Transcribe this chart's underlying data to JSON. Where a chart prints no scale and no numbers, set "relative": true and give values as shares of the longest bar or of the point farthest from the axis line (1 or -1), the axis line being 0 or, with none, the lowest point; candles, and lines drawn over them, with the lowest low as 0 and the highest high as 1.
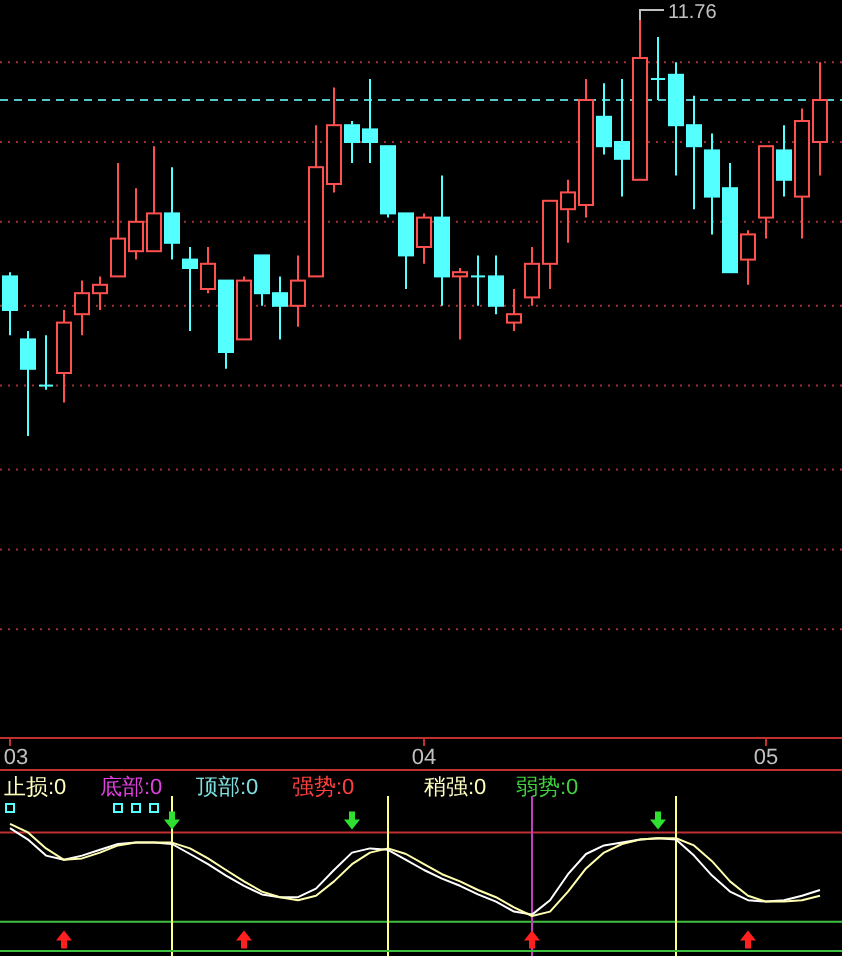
{
  "chart_data": [
    {
      "type": "candlestick",
      "relative": true,
      "categories": [
        "03",
        null,
        null,
        null,
        null,
        null,
        null,
        null,
        null,
        null,
        null,
        null,
        null,
        null,
        null,
        null,
        null,
        null,
        null,
        null,
        null,
        null,
        null,
        "04",
        null,
        null,
        null,
        null,
        null,
        null,
        null,
        null,
        null,
        null,
        null,
        null,
        null,
        null,
        null,
        null,
        null,
        null,
        "05",
        null,
        null,
        null
      ],
      "ohlc": [
        [
          0.38,
          0.39,
          0.24,
          0.3
        ],
        [
          0.23,
          0.25,
          0,
          0.16
        ],
        [
          0.12,
          0.24,
          0.11,
          0.12
        ],
        [
          0.15,
          0.3,
          0.08,
          0.27
        ],
        [
          0.29,
          0.37,
          0.24,
          0.34
        ],
        [
          0.34,
          0.38,
          0.3,
          0.36
        ],
        [
          0.38,
          0.65,
          0.38,
          0.47
        ],
        [
          0.44,
          0.59,
          0.42,
          0.51
        ],
        [
          0.44,
          0.69,
          0.44,
          0.53
        ],
        [
          0.53,
          0.64,
          0.42,
          0.46
        ],
        [
          0.42,
          0.45,
          0.25,
          0.4
        ],
        [
          0.35,
          0.45,
          0.34,
          0.41
        ],
        [
          0.37,
          0.37,
          0.16,
          0.2
        ],
        [
          0.23,
          0.38,
          0.23,
          0.37
        ],
        [
          0.43,
          0.43,
          0.31,
          0.34
        ],
        [
          0.34,
          0.38,
          0.23,
          0.31
        ],
        [
          0.31,
          0.43,
          0.26,
          0.37
        ],
        [
          0.38,
          0.74,
          0.38,
          0.64
        ],
        [
          0.6,
          0.83,
          0.58,
          0.74
        ],
        [
          0.74,
          0.75,
          0.65,
          0.7
        ],
        [
          0.73,
          0.85,
          0.65,
          0.7
        ],
        [
          0.69,
          0.69,
          0.52,
          0.53
        ],
        [
          0.53,
          0.53,
          0.35,
          0.43
        ],
        [
          0.45,
          0.53,
          0.41,
          0.52
        ],
        [
          0.52,
          0.62,
          0.31,
          0.38
        ],
        [
          0.38,
          0.4,
          0.23,
          0.39
        ],
        [
          0.38,
          0.43,
          0.31,
          0.38
        ],
        [
          0.38,
          0.43,
          0.29,
          0.31
        ],
        [
          0.27,
          0.35,
          0.25,
          0.29
        ],
        [
          0.33,
          0.45,
          0.31,
          0.41
        ],
        [
          0.41,
          0.56,
          0.35,
          0.56
        ],
        [
          0.54,
          0.61,
          0.46,
          0.58
        ],
        [
          0.55,
          0.85,
          0.52,
          0.8
        ],
        [
          0.76,
          0.84,
          0.67,
          0.69
        ],
        [
          0.7,
          0.85,
          0.57,
          0.66
        ],
        [
          0.61,
          1.0,
          0.61,
          0.9
        ],
        [
          0.85,
          0.95,
          0.8,
          0.85
        ],
        [
          0.86,
          0.89,
          0.62,
          0.74
        ],
        [
          0.74,
          0.81,
          0.54,
          0.69
        ],
        [
          0.68,
          0.72,
          0.48,
          0.57
        ],
        [
          0.59,
          0.65,
          0.39,
          0.39
        ],
        [
          0.42,
          0.49,
          0.36,
          0.48
        ],
        [
          0.52,
          0.69,
          0.47,
          0.69
        ],
        [
          0.68,
          0.74,
          0.57,
          0.61
        ],
        [
          0.57,
          0.78,
          0.47,
          0.75
        ],
        [
          0.7,
          0.89,
          0.62,
          0.8
        ]
      ],
      "colors": [
        "#54ffff",
        "#54ffff",
        "#54ffff",
        "#ff5050",
        "#ff5050",
        "#ff5050",
        "#ff5050",
        "#ff5050",
        "#ff5050",
        "#54ffff",
        "#54ffff",
        "#ff5050",
        "#54ffff",
        "#ff5050",
        "#54ffff",
        "#54ffff",
        "#ff5050",
        "#ff5050",
        "#ff5050",
        "#54ffff",
        "#54ffff",
        "#54ffff",
        "#54ffff",
        "#ff5050",
        "#54ffff",
        "#ff5050",
        "#54ffff",
        "#54ffff",
        "#ff5050",
        "#ff5050",
        "#ff5050",
        "#ff5050",
        "#ff5050",
        "#54ffff",
        "#54ffff",
        "#ff5050",
        "#54ffff",
        "#54ffff",
        "#54ffff",
        "#54ffff",
        "#54ffff",
        "#ff5050",
        "#ff5050",
        "#54ffff",
        "#ff5050",
        "#ff5050"
      ],
      "ref_lines": [
        {
          "axis": "y",
          "value": 0.89,
          "color": "#a03030",
          "line_style": "dotted"
        },
        {
          "axis": "y",
          "value": 0.8,
          "color": "#54c8c8",
          "line_style": "dashed"
        },
        {
          "axis": "y",
          "value": 0.7,
          "color": "#a03030",
          "line_style": "dotted"
        },
        {
          "axis": "y",
          "value": 0.51,
          "color": "#a03030",
          "line_style": "dotted"
        },
        {
          "axis": "y",
          "value": 0.31,
          "color": "#a03030",
          "line_style": "dotted"
        },
        {
          "axis": "y",
          "value": 0.12,
          "color": "#a03030",
          "line_style": "dotted"
        },
        {
          "axis": "y",
          "value": -0.08,
          "color": "#a03030",
          "line_style": "dotted"
        },
        {
          "axis": "y",
          "value": -0.27,
          "color": "#a03030",
          "line_style": "dotted"
        },
        {
          "axis": "y",
          "value": -0.46,
          "color": "#a03030",
          "line_style": "dotted"
        }
      ],
      "annotations": [
        "11.76"
      ]
    },
    {
      "type": "line",
      "relative": true,
      "grid": true,
      "categories": [
        null,
        null,
        null,
        null,
        null,
        null,
        null,
        null,
        null,
        null,
        null,
        null,
        null,
        null,
        null,
        null,
        null,
        null,
        null,
        null,
        null,
        null,
        null,
        null,
        null,
        null,
        null,
        null,
        null,
        null,
        null,
        null,
        null,
        null,
        null,
        null,
        null,
        null,
        null,
        null,
        null,
        null,
        null,
        null,
        null,
        null
      ],
      "series": [
        {
          "color": "#ffffff",
          "values": [
            0.86,
            0.78,
            0.67,
            0.64,
            0.67,
            0.71,
            0.75,
            0.76,
            0.76,
            0.75,
            0.68,
            0.61,
            0.53,
            0.46,
            0.4,
            0.38,
            0.38,
            0.44,
            0.57,
            0.69,
            0.72,
            0.71,
            0.64,
            0.57,
            0.51,
            0.46,
            0.4,
            0.35,
            0.28,
            0.26,
            0.36,
            0.54,
            0.68,
            0.74,
            0.76,
            0.78,
            0.79,
            0.78,
            0.67,
            0.53,
            0.42,
            0.36,
            0.35,
            0.36,
            0.39,
            0.43
          ]
        },
        {
          "color": "#ffffb0",
          "values": [
            0.89,
            0.83,
            0.72,
            0.64,
            0.65,
            0.69,
            0.74,
            0.76,
            0.76,
            0.76,
            0.72,
            0.65,
            0.57,
            0.49,
            0.42,
            0.38,
            0.36,
            0.39,
            0.49,
            0.61,
            0.69,
            0.72,
            0.68,
            0.61,
            0.54,
            0.49,
            0.43,
            0.38,
            0.31,
            0.25,
            0.28,
            0.42,
            0.58,
            0.69,
            0.75,
            0.78,
            0.79,
            0.79,
            0.74,
            0.63,
            0.49,
            0.39,
            0.35,
            0.35,
            0.36,
            0.39
          ]
        },
        {
          "type": "scatter",
          "marker": "triangle",
          "color": "#30e030",
          "values": [
            null,
            null,
            null,
            null,
            null,
            null,
            null,
            null,
            null,
            0.92,
            null,
            null,
            null,
            null,
            null,
            null,
            null,
            null,
            null,
            0.92,
            null,
            null,
            null,
            null,
            null,
            null,
            null,
            null,
            null,
            null,
            null,
            null,
            null,
            null,
            null,
            null,
            0.92,
            null,
            null,
            null,
            null,
            null,
            null,
            null,
            null,
            null
          ]
        },
        {
          "type": "scatter",
          "marker": "triangle",
          "color": "#ff2020",
          "values": [
            null,
            null,
            null,
            0.08,
            null,
            null,
            null,
            null,
            null,
            null,
            null,
            null,
            null,
            0.08,
            null,
            null,
            null,
            null,
            null,
            null,
            null,
            null,
            null,
            null,
            null,
            null,
            null,
            null,
            null,
            0.08,
            null,
            null,
            null,
            null,
            null,
            null,
            null,
            null,
            null,
            null,
            null,
            0.08,
            null,
            null,
            null,
            null
          ]
        },
        {
          "type": "scatter",
          "marker": "square",
          "color": "#54ffff",
          "values": [
            1.0,
            null,
            null,
            null,
            null,
            null,
            1.0,
            1.0,
            1.0,
            null,
            null,
            null,
            null,
            null,
            null,
            null,
            null,
            null,
            null,
            null,
            null,
            null,
            null,
            null,
            null,
            null,
            null,
            null,
            null,
            null,
            null,
            null,
            null,
            null,
            null,
            null,
            null,
            null,
            null,
            null,
            null,
            null,
            null,
            null,
            null,
            null
          ]
        }
      ],
      "ref_lines": [
        {
          "axis": "y",
          "value": 0.83,
          "color": "#c03030"
        },
        {
          "axis": "y",
          "value": 0.21,
          "color": "#40c040"
        }
      ],
      "annotations": [
        "止损:0",
        "底部:0",
        "顶部:0",
        "强势:0",
        "稍强:0",
        "弱势:0"
      ]
    }
  ]
}
